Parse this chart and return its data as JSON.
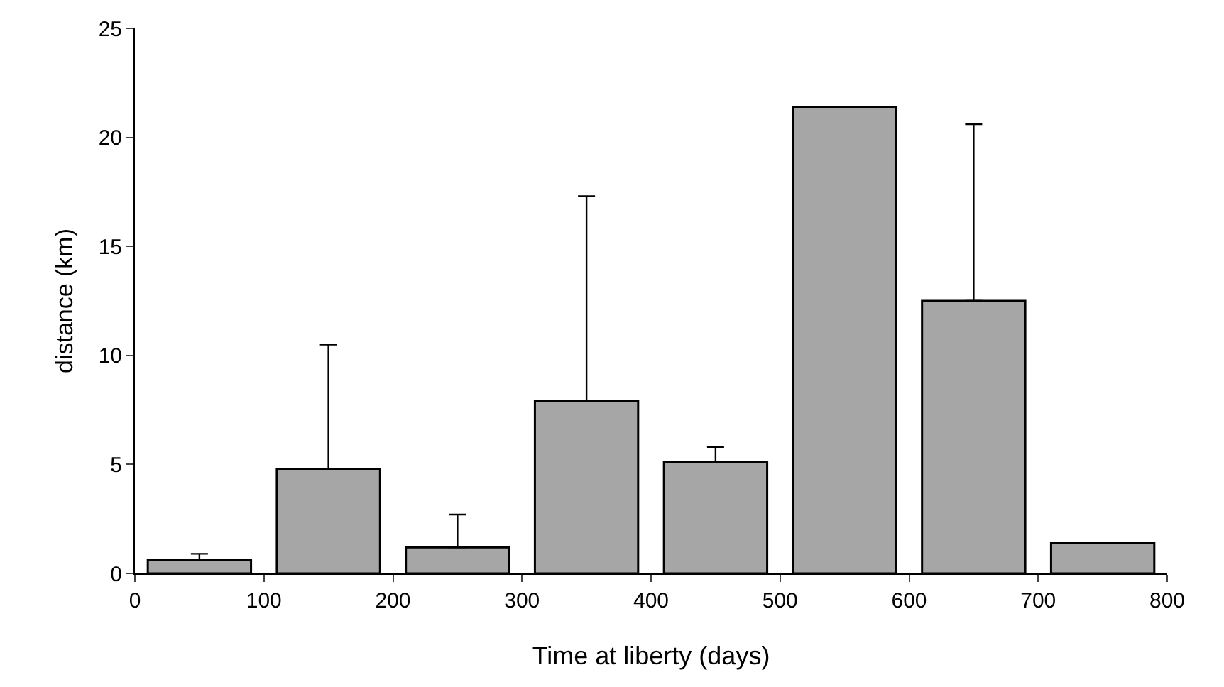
{
  "chart_data": {
    "type": "bar",
    "xlabel": "Time at liberty (days)",
    "ylabel": "distance (km)",
    "x": [
      50,
      150,
      250,
      350,
      450,
      550,
      650,
      750
    ],
    "values": [
      0.6,
      4.8,
      1.2,
      7.9,
      5.1,
      21.4,
      12.5,
      1.4
    ],
    "errors": [
      [
        0.6,
        0.9
      ],
      [
        4.8,
        10.5
      ],
      [
        1.2,
        2.7
      ],
      [
        7.9,
        17.3
      ],
      [
        5.1,
        5.8
      ],
      null,
      [
        12.5,
        20.6
      ],
      null
    ],
    "color": "#a6a6a6",
    "xlim": [
      0,
      800
    ],
    "xticks": [
      0,
      100,
      200,
      300,
      400,
      500,
      600,
      700,
      800
    ],
    "ylim": [
      0,
      25
    ],
    "yticks": [
      0,
      5,
      10,
      15,
      20,
      25
    ],
    "grid": false
  }
}
